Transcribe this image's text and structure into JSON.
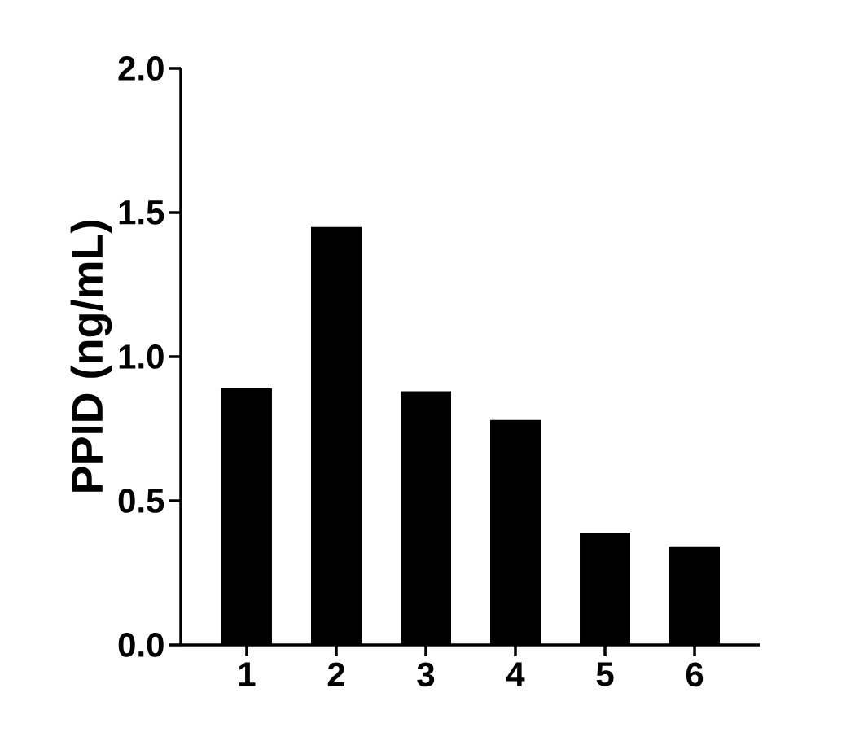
{
  "chart_data": {
    "type": "bar",
    "ylabel": "PPID (ng/mL)",
    "categories": [
      "1",
      "2",
      "3",
      "4",
      "5",
      "6"
    ],
    "values": [
      0.89,
      1.45,
      0.88,
      0.78,
      0.39,
      0.34
    ],
    "color": "#000000",
    "ylim": [
      0,
      2.0
    ],
    "yticks": [
      {
        "value": 0,
        "label": "0.0"
      },
      {
        "value": 0.5,
        "label": "0.5"
      },
      {
        "value": 1.0,
        "label": "1.0"
      },
      {
        "value": 1.5,
        "label": "1.5"
      },
      {
        "value": 2.0,
        "label": "2.0"
      }
    ]
  }
}
